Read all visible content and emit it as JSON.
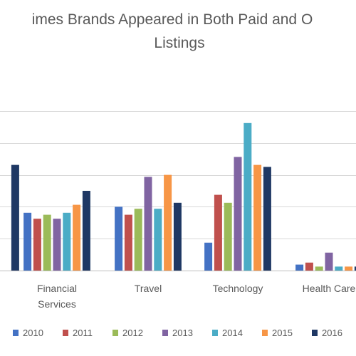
{
  "chart_data": {
    "type": "bar",
    "title": "imes Brands Appeared in Both Paid and O",
    "title_line2": "Listings",
    "categories": [
      "",
      "Financial Services",
      "Travel",
      "Technology",
      "Health Care"
    ],
    "category_lines": [
      [
        "",
        ""
      ],
      [
        "Financial",
        "Services"
      ],
      [
        "Travel",
        ""
      ],
      [
        "Technology",
        ""
      ],
      [
        "Health Care",
        ""
      ]
    ],
    "series": [
      {
        "name": "2010",
        "color": "#4472C4",
        "values": [
          null,
          29,
          32,
          14,
          3
        ]
      },
      {
        "name": "2011",
        "color": "#C0504D",
        "values": [
          null,
          26,
          28,
          38,
          4
        ]
      },
      {
        "name": "2012",
        "color": "#9BBB59",
        "values": [
          null,
          28,
          31,
          34,
          2
        ]
      },
      {
        "name": "2013",
        "color": "#8064A2",
        "values": [
          null,
          26,
          47,
          57,
          9
        ]
      },
      {
        "name": "2014",
        "color": "#4BACC6",
        "values": [
          null,
          29,
          31,
          74,
          2
        ]
      },
      {
        "name": "2015",
        "color": "#F79646",
        "values": [
          null,
          33,
          48,
          53,
          2
        ]
      },
      {
        "name": "2016",
        "color": "#1F3864",
        "values": [
          53,
          40,
          34,
          52,
          2
        ]
      }
    ],
    "ylim": [
      0,
      90
    ],
    "gridlines": [
      0,
      16,
      32,
      48,
      64,
      80
    ],
    "grid": true,
    "legend_position": "bottom"
  }
}
